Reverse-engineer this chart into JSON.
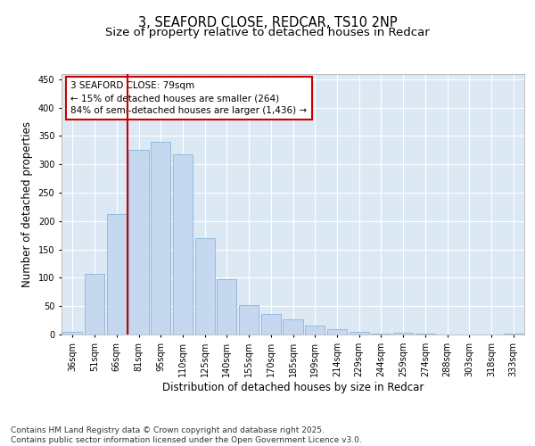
{
  "title_line1": "3, SEAFORD CLOSE, REDCAR, TS10 2NP",
  "title_line2": "Size of property relative to detached houses in Redcar",
  "xlabel": "Distribution of detached houses by size in Redcar",
  "ylabel": "Number of detached properties",
  "categories": [
    "36sqm",
    "51sqm",
    "66sqm",
    "81sqm",
    "95sqm",
    "110sqm",
    "125sqm",
    "140sqm",
    "155sqm",
    "170sqm",
    "185sqm",
    "199sqm",
    "214sqm",
    "229sqm",
    "244sqm",
    "259sqm",
    "274sqm",
    "288sqm",
    "303sqm",
    "318sqm",
    "333sqm"
  ],
  "values": [
    5,
    107,
    213,
    325,
    340,
    318,
    170,
    98,
    52,
    36,
    27,
    15,
    9,
    4,
    1,
    3,
    1,
    0,
    0,
    0,
    1
  ],
  "bar_color": "#c5d8f0",
  "bar_edge_color": "#7aadd4",
  "highlight_line_color": "#cc0000",
  "annotation_text": "3 SEAFORD CLOSE: 79sqm\n← 15% of detached houses are smaller (264)\n84% of semi-detached houses are larger (1,436) →",
  "annotation_box_color": "#cc0000",
  "ylim": [
    0,
    460
  ],
  "yticks": [
    0,
    50,
    100,
    150,
    200,
    250,
    300,
    350,
    400,
    450
  ],
  "background_color": "#dce9f5",
  "footer_text": "Contains HM Land Registry data © Crown copyright and database right 2025.\nContains public sector information licensed under the Open Government Licence v3.0.",
  "title_fontsize": 10.5,
  "subtitle_fontsize": 9.5,
  "axis_label_fontsize": 8.5,
  "tick_fontsize": 7,
  "annotation_fontsize": 7.5,
  "footer_fontsize": 6.5
}
